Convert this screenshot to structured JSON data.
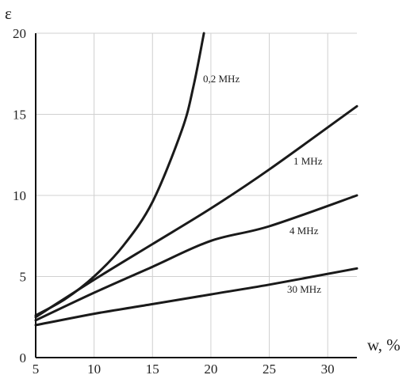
{
  "chart_data": {
    "type": "line",
    "title": "",
    "xlabel": "w, %",
    "ylabel": "ε",
    "xlim": [
      5,
      32.5
    ],
    "ylim": [
      0,
      20
    ],
    "xticks": [
      5,
      10,
      15,
      20,
      25,
      30
    ],
    "yticks": [
      0,
      5,
      10,
      15,
      20
    ],
    "grid": true,
    "colors": {
      "line": "#1a1a1a",
      "grid": "#d0d0d0",
      "axis": "#111111"
    },
    "series": [
      {
        "name": "0,2 MHz",
        "x": [
          5,
          7.5,
          10,
          12.5,
          15,
          17.5,
          18.5,
          19.4
        ],
        "y": [
          2.6,
          3.6,
          5.0,
          6.9,
          9.6,
          14.0,
          16.7,
          20.0
        ]
      },
      {
        "name": "1 MHz",
        "x": [
          5,
          10,
          15,
          20,
          25,
          32.5
        ],
        "y": [
          2.5,
          4.8,
          7.0,
          9.2,
          11.6,
          15.5
        ]
      },
      {
        "name": "4 MHz",
        "x": [
          5,
          10,
          15,
          20,
          25,
          32.5
        ],
        "y": [
          2.3,
          4.0,
          5.6,
          7.2,
          8.1,
          10.0
        ]
      },
      {
        "name": "30 MHz",
        "x": [
          5,
          10,
          15,
          20,
          25,
          32.5
        ],
        "y": [
          2.0,
          2.7,
          3.3,
          3.9,
          4.5,
          5.5
        ]
      }
    ]
  }
}
